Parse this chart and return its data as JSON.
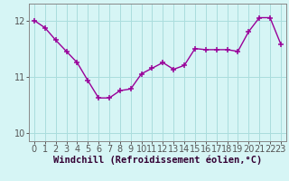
{
  "x": [
    0,
    1,
    2,
    3,
    4,
    5,
    6,
    7,
    8,
    9,
    10,
    11,
    12,
    13,
    14,
    15,
    16,
    17,
    18,
    19,
    20,
    21,
    22,
    23
  ],
  "y": [
    12.0,
    11.87,
    11.65,
    11.45,
    11.25,
    10.93,
    10.62,
    10.62,
    10.75,
    10.78,
    11.05,
    11.15,
    11.25,
    11.13,
    11.2,
    11.5,
    11.48,
    11.48,
    11.48,
    11.45,
    11.8,
    12.05,
    12.05,
    11.58
  ],
  "line_color": "#990099",
  "marker": "+",
  "markersize": 4,
  "linewidth": 1.0,
  "bg_color": "#d6f5f5",
  "grid_color": "#aadddd",
  "xlabel": "Windchill (Refroidissement éolien,°C)",
  "ylim": [
    9.85,
    12.3
  ],
  "yticks": [
    10,
    11,
    12
  ],
  "xticks": [
    0,
    1,
    2,
    3,
    4,
    5,
    6,
    7,
    8,
    9,
    10,
    11,
    12,
    13,
    14,
    15,
    16,
    17,
    18,
    19,
    20,
    21,
    22,
    23
  ],
  "xlabel_fontsize": 7.5,
  "tick_fontsize": 7,
  "axis_color": "#555555",
  "spine_color": "#888888"
}
